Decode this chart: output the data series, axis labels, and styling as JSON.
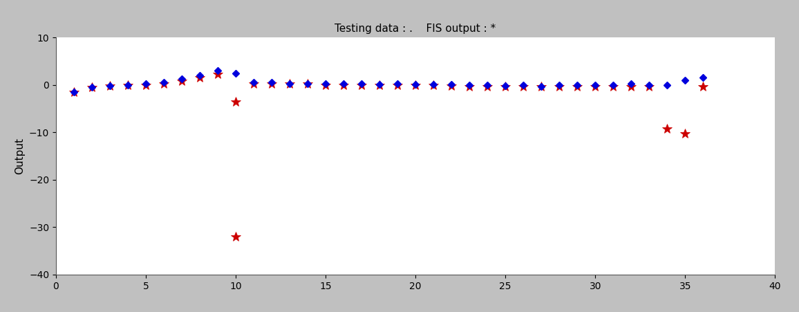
{
  "title": "Testing data : .    FIS output : *",
  "ylabel": "Output",
  "xlim": [
    0,
    40
  ],
  "ylim": [
    -40,
    10
  ],
  "xticks": [
    0,
    5,
    10,
    15,
    20,
    25,
    30,
    35,
    40
  ],
  "yticks": [
    10,
    0,
    -10,
    -20,
    -30,
    -40
  ],
  "bg_color": "#c0c0c0",
  "plot_bg": "#ffffff",
  "blue_x": [
    1,
    2,
    3,
    4,
    5,
    6,
    7,
    8,
    9,
    10,
    11,
    12,
    13,
    14,
    15,
    16,
    17,
    18,
    19,
    20,
    21,
    22,
    23,
    24,
    25,
    26,
    27,
    28,
    29,
    30,
    31,
    32,
    33,
    34,
    35,
    36
  ],
  "blue_y": [
    -1.5,
    -0.5,
    -0.2,
    0.0,
    0.2,
    0.5,
    1.2,
    2.0,
    3.0,
    2.5,
    0.5,
    0.5,
    0.3,
    0.3,
    0.2,
    0.2,
    0.2,
    0.1,
    0.2,
    0.1,
    0.1,
    0.1,
    0.0,
    0.0,
    -0.2,
    0.0,
    -0.3,
    -0.1,
    0.0,
    0.0,
    0.0,
    0.2,
    0.0,
    0.0,
    1.0,
    1.5
  ],
  "red_x": [
    1,
    2,
    3,
    4,
    5,
    6,
    7,
    8,
    9,
    10,
    10,
    11,
    12,
    13,
    14,
    15,
    16,
    17,
    18,
    19,
    20,
    21,
    22,
    23,
    24,
    25,
    26,
    27,
    28,
    29,
    30,
    31,
    32,
    33,
    34,
    35,
    36
  ],
  "red_y": [
    -1.5,
    -0.5,
    -0.2,
    0.0,
    0.0,
    0.3,
    0.8,
    1.5,
    2.3,
    -3.5,
    -32.0,
    0.3,
    0.3,
    0.2,
    0.2,
    0.0,
    0.0,
    0.0,
    0.0,
    0.0,
    0.0,
    0.0,
    -0.2,
    -0.3,
    -0.3,
    -0.3,
    -0.3,
    -0.3,
    -0.3,
    -0.3,
    -0.3,
    -0.3,
    -0.3,
    -0.3,
    -9.2,
    -10.2,
    -0.3
  ],
  "blue_color": "#0000dd",
  "red_color": "#cc0000",
  "title_fontsize": 11,
  "label_fontsize": 11,
  "tick_fontsize": 10
}
